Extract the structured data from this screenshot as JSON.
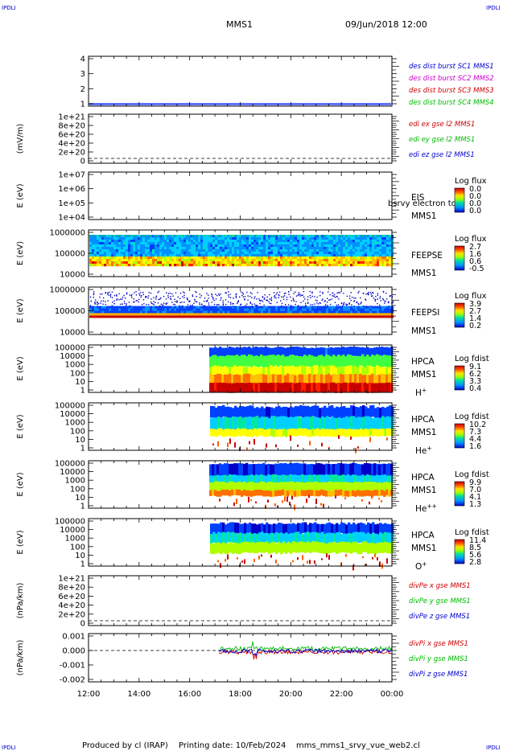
{
  "header": {
    "corner_tl": "IPDLI",
    "corner_tr": "IPDLI",
    "mission": "MMS1",
    "datetime": "09/Jun/2018 12:00"
  },
  "footer": {
    "corner_bl": "IPDLI",
    "corner_br": "IPDLI",
    "produced_by": "Produced by cl (IRAP)",
    "printing_date": "Printing date: 10/Feb/2024",
    "file": "mms_mms1_srvy_vue_web2.cl"
  },
  "colors": {
    "blue": "#0000cc",
    "magenta": "#cc00cc",
    "red": "#cc0000",
    "green": "#00bb00"
  },
  "chart_data": {
    "type": "heatmap",
    "x_ticks": [
      "12:00",
      "14:00",
      "16:00",
      "18:00",
      "20:00",
      "22:00",
      "00:00"
    ],
    "panels": [
      {
        "id": "des",
        "yticks": [
          "4",
          "3",
          "2",
          "1"
        ],
        "legend": [
          {
            "text": "des dist burst SC1 MMS1",
            "color": "blue"
          },
          {
            "text": "des dist burst SC2 MMS2",
            "color": "magenta"
          },
          {
            "text": "des dist burst SC3 MMS3",
            "color": "red"
          },
          {
            "text": "des dist burst SC4 MMS4",
            "color": "green"
          }
        ]
      },
      {
        "id": "edi",
        "ylabel": "(mV/m)",
        "yticks": [
          "1e+21",
          "8e+20",
          "6e+20",
          "4e+20",
          "2e+20",
          "0"
        ],
        "legend": [
          {
            "text": "edi ex gse l2 MMS1",
            "color": "red"
          },
          {
            "text": "edi ey gse l2 MMS1",
            "color": "green"
          },
          {
            "text": "edi ez gse l2 MMS1",
            "color": "blue"
          }
        ]
      },
      {
        "id": "eis",
        "ylabel": "E (eV)",
        "yticks": [
          "1e+07",
          "1e+06",
          "1e+05",
          "1e+04"
        ],
        "labels": [
          "EIS",
          "MMS1"
        ],
        "overlay": "bsrvy electron to",
        "cbar_title": "Log flux",
        "cbar": [
          "0.0",
          "0.0",
          "0.0",
          "0.0"
        ]
      },
      {
        "id": "feepse",
        "ylabel": "E (eV)",
        "yticks": [
          "1000000",
          "100000",
          "10000"
        ],
        "labels": [
          "FEEPSE",
          "MMS1"
        ],
        "cbar_title": "Log flux",
        "cbar": [
          "2.7",
          "1.6",
          "0.6",
          "-0.5"
        ]
      },
      {
        "id": "feepsi",
        "ylabel": "E (eV)",
        "yticks": [
          "1000000",
          "100000",
          "10000"
        ],
        "labels": [
          "FEEPSI",
          "MMS1"
        ],
        "cbar_title": "Log flux",
        "cbar": [
          "3.9",
          "2.7",
          "1.4",
          "0.2"
        ]
      },
      {
        "id": "hpca_h",
        "ylabel": "E (eV)",
        "yticks": [
          "100000",
          "10000",
          "1000",
          "100",
          "10",
          "1"
        ],
        "labels": [
          "HPCA",
          "MMS1"
        ],
        "species": "H",
        "charge": "+",
        "cbar_title": "Log fdist",
        "cbar": [
          "9.1",
          "6.2",
          "3.3",
          "0.4"
        ]
      },
      {
        "id": "hpca_he",
        "ylabel": "E (eV)",
        "yticks": [
          "100000",
          "10000",
          "1000",
          "100",
          "10",
          "1"
        ],
        "labels": [
          "HPCA",
          "MMS1"
        ],
        "species": "He",
        "charge": "+",
        "cbar_title": "Log fdist",
        "cbar": [
          "10.2",
          "7.3",
          "4.4",
          "1.6"
        ]
      },
      {
        "id": "hpca_hepp",
        "ylabel": "E (eV)",
        "yticks": [
          "100000",
          "10000",
          "1000",
          "100",
          "10",
          "1"
        ],
        "labels": [
          "HPCA",
          "MMS1"
        ],
        "species": "He",
        "charge": "++",
        "cbar_title": "Log fdist",
        "cbar": [
          "9.9",
          "7.0",
          "4.1",
          "1.3"
        ]
      },
      {
        "id": "hpca_o",
        "ylabel": "E (eV)",
        "yticks": [
          "100000",
          "10000",
          "1000",
          "100",
          "10",
          "1"
        ],
        "labels": [
          "HPCA",
          "MMS1"
        ],
        "species": "O",
        "charge": "+",
        "cbar_title": "Log fdist",
        "cbar": [
          "11.4",
          "8.5",
          "5.6",
          "2.8"
        ]
      },
      {
        "id": "divpe",
        "ylabel": "(nPa/km)",
        "yticks": [
          "1e+21",
          "8e+20",
          "6e+20",
          "4e+20",
          "2e+20",
          "0"
        ],
        "legend": [
          {
            "text": "divPe x gse MMS1",
            "color": "red"
          },
          {
            "text": "divPe y gse MMS1",
            "color": "green"
          },
          {
            "text": "divPe z gse MMS1",
            "color": "blue"
          }
        ]
      },
      {
        "id": "divpi",
        "ylabel": "(nPa/km)",
        "yticks": [
          "0.001",
          "0.000",
          "-0.001",
          "-0.002"
        ],
        "legend": [
          {
            "text": "divPi x gse MMS1",
            "color": "red"
          },
          {
            "text": "divPi y gse MMS1",
            "color": "green"
          },
          {
            "text": "divPi z gse MMS1",
            "color": "blue"
          }
        ]
      }
    ]
  }
}
